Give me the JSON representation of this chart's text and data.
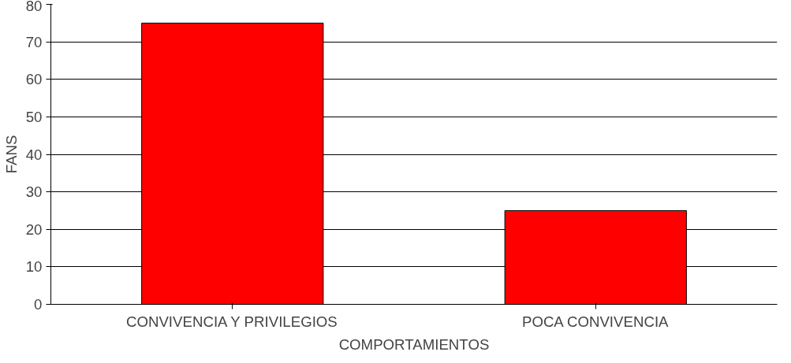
{
  "chart_data": {
    "type": "bar",
    "xlabel": "COMPORTAMIENTOS",
    "ylabel": "FANS",
    "categories": [
      "CONVIVENCIA Y PRIVILEGIOS",
      "POCA CONVIVENCIA"
    ],
    "values": [
      75,
      25
    ],
    "color": "#ff0000",
    "ylim": [
      0,
      80
    ],
    "yticks": [
      0,
      10,
      20,
      30,
      40,
      50,
      60,
      70,
      80
    ],
    "grid": "y"
  }
}
